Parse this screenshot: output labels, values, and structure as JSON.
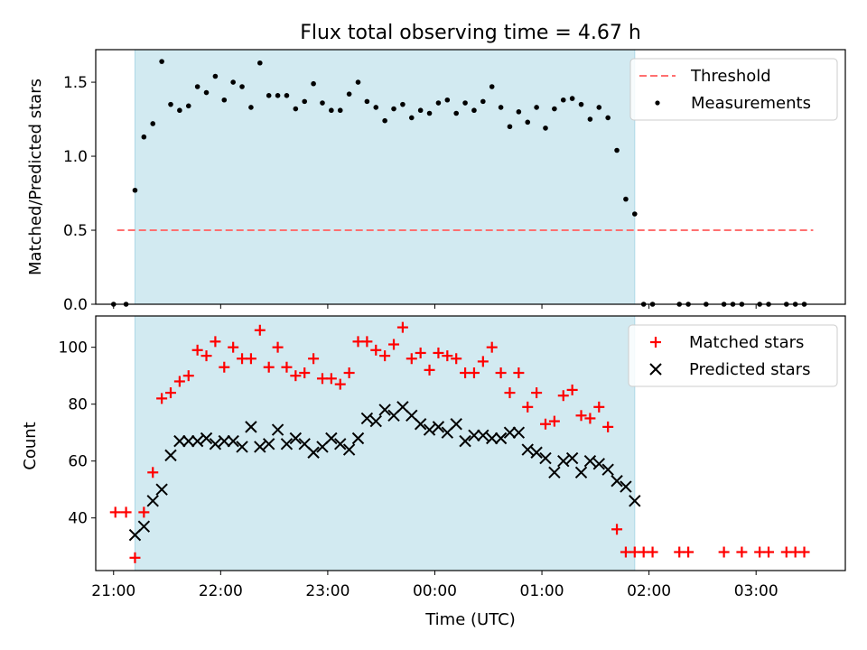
{
  "colors": {
    "shade": "#add8e6",
    "threshold": "#ff7070",
    "measurement": "#000000",
    "matched": "#ff0000",
    "predicted": "#000000"
  },
  "chart_data": [
    {
      "type": "scatter",
      "title": "Flux total observing time = 4.67 h",
      "xlabel": "",
      "ylabel": "Matched/Predicted stars",
      "xlim": [
        "20:50",
        "03:50"
      ],
      "ylim": [
        0,
        1.72
      ],
      "ytick_labels": [
        "0.0",
        "0.5",
        "1.0",
        "1.5"
      ],
      "yticks": [
        0,
        0.5,
        1.0,
        1.5
      ],
      "shaded_span": [
        "21:12",
        "01:52"
      ],
      "legend_position": "upper right",
      "threshold": {
        "name": "Threshold",
        "value": 0.5,
        "x": [
          "21:02",
          "03:32"
        ],
        "style": "dashed"
      },
      "series": [
        {
          "name": "Measurements",
          "x": [
            "21:00",
            "21:07",
            "21:12",
            "21:17",
            "21:22",
            "21:27",
            "21:32",
            "21:37",
            "21:42",
            "21:47",
            "21:52",
            "21:57",
            "22:02",
            "22:07",
            "22:12",
            "22:17",
            "22:22",
            "22:27",
            "22:32",
            "22:37",
            "22:42",
            "22:47",
            "22:52",
            "22:57",
            "23:02",
            "23:07",
            "23:12",
            "23:17",
            "23:22",
            "23:27",
            "23:32",
            "23:37",
            "23:42",
            "23:47",
            "23:52",
            "23:57",
            "00:02",
            "00:07",
            "00:12",
            "00:17",
            "00:22",
            "00:27",
            "00:32",
            "00:37",
            "00:42",
            "00:47",
            "00:52",
            "00:57",
            "01:02",
            "01:07",
            "01:12",
            "01:17",
            "01:22",
            "01:27",
            "01:32",
            "01:37",
            "01:42",
            "01:47",
            "01:52",
            "01:57",
            "02:02",
            "02:17",
            "02:22",
            "02:32",
            "02:42",
            "02:47",
            "02:52",
            "03:02",
            "03:07",
            "03:17",
            "03:22",
            "03:27"
          ],
          "y": [
            0,
            0,
            0.77,
            1.13,
            1.22,
            1.64,
            1.35,
            1.31,
            1.34,
            1.47,
            1.43,
            1.54,
            1.38,
            1.5,
            1.47,
            1.33,
            1.63,
            1.41,
            1.41,
            1.41,
            1.32,
            1.37,
            1.49,
            1.36,
            1.31,
            1.31,
            1.42,
            1.5,
            1.37,
            1.33,
            1.24,
            1.32,
            1.35,
            1.26,
            1.31,
            1.29,
            1.36,
            1.38,
            1.29,
            1.36,
            1.31,
            1.37,
            1.47,
            1.33,
            1.2,
            1.3,
            1.23,
            1.33,
            1.19,
            1.32,
            1.38,
            1.39,
            1.35,
            1.25,
            1.33,
            1.26,
            1.04,
            0.71,
            0.61,
            0,
            0,
            0,
            0,
            0,
            0,
            0,
            0,
            0,
            0,
            0,
            0,
            0
          ]
        }
      ]
    },
    {
      "type": "scatter",
      "title": "",
      "xlabel": "Time (UTC)",
      "ylabel": "Count",
      "xlim": [
        "20:50",
        "03:50"
      ],
      "ylim": [
        21.5,
        111
      ],
      "ytick_labels": [
        "40",
        "60",
        "80",
        "100"
      ],
      "yticks": [
        40,
        60,
        80,
        100
      ],
      "xtick_labels": [
        "21:00",
        "22:00",
        "23:00",
        "00:00",
        "01:00",
        "02:00",
        "03:00"
      ],
      "xticks": [
        "21:00",
        "22:00",
        "23:00",
        "00:00",
        "01:00",
        "02:00",
        "03:00"
      ],
      "shaded_span": [
        "21:12",
        "01:52"
      ],
      "legend_position": "upper right",
      "series": [
        {
          "name": "Matched stars",
          "marker": "+",
          "x": [
            "21:01",
            "21:07",
            "21:12",
            "21:17",
            "21:22",
            "21:27",
            "21:32",
            "21:37",
            "21:42",
            "21:47",
            "21:52",
            "21:57",
            "22:02",
            "22:07",
            "22:12",
            "22:17",
            "22:22",
            "22:27",
            "22:32",
            "22:37",
            "22:42",
            "22:47",
            "22:52",
            "22:57",
            "23:02",
            "23:07",
            "23:12",
            "23:17",
            "23:22",
            "23:27",
            "23:32",
            "23:37",
            "23:42",
            "23:47",
            "23:52",
            "23:57",
            "00:02",
            "00:07",
            "00:12",
            "00:17",
            "00:22",
            "00:27",
            "00:32",
            "00:37",
            "00:42",
            "00:47",
            "00:52",
            "00:57",
            "01:02",
            "01:07",
            "01:12",
            "01:17",
            "01:22",
            "01:27",
            "01:32",
            "01:37",
            "01:42",
            "01:47",
            "01:52",
            "01:57",
            "02:02",
            "02:17",
            "02:22",
            "02:42",
            "02:52",
            "03:02",
            "03:07",
            "03:17",
            "03:22",
            "03:27"
          ],
          "y": [
            42,
            42,
            26,
            42,
            56,
            82,
            84,
            88,
            90,
            99,
            97,
            102,
            93,
            100,
            96,
            96,
            106,
            93,
            100,
            93,
            90,
            91,
            96,
            89,
            89,
            87,
            91,
            102,
            102,
            99,
            97,
            101,
            107,
            96,
            98,
            92,
            98,
            97,
            96,
            91,
            91,
            95,
            100,
            91,
            84,
            91,
            79,
            84,
            73,
            74,
            83,
            85,
            76,
            75,
            79,
            72,
            36,
            28,
            28,
            28,
            28,
            28,
            28,
            28,
            28,
            28,
            28,
            28,
            28,
            28
          ]
        },
        {
          "name": "Predicted stars",
          "marker": "x",
          "x": [
            "21:12",
            "21:17",
            "21:22",
            "21:27",
            "21:32",
            "21:37",
            "21:42",
            "21:47",
            "21:52",
            "21:57",
            "22:02",
            "22:07",
            "22:12",
            "22:17",
            "22:22",
            "22:27",
            "22:32",
            "22:37",
            "22:42",
            "22:47",
            "22:52",
            "22:57",
            "23:02",
            "23:07",
            "23:12",
            "23:17",
            "23:22",
            "23:27",
            "23:32",
            "23:37",
            "23:42",
            "23:47",
            "23:52",
            "23:57",
            "00:02",
            "00:07",
            "00:12",
            "00:17",
            "00:22",
            "00:27",
            "00:32",
            "00:37",
            "00:42",
            "00:47",
            "00:52",
            "00:57",
            "01:02",
            "01:07",
            "01:12",
            "01:17",
            "01:22",
            "01:27",
            "01:32",
            "01:37",
            "01:42",
            "01:47",
            "01:52"
          ],
          "y": [
            34,
            37,
            46,
            50,
            62,
            67,
            67,
            67,
            68,
            66,
            67,
            67,
            65,
            72,
            65,
            66,
            71,
            66,
            68,
            66,
            63,
            65,
            68,
            66,
            64,
            68,
            75,
            74,
            78,
            76,
            79,
            76,
            73,
            71,
            72,
            70,
            73,
            67,
            69,
            69,
            68,
            68,
            70,
            70,
            64,
            63,
            61,
            56,
            60,
            61,
            56,
            60,
            59,
            57,
            53,
            51,
            46
          ]
        }
      ]
    }
  ]
}
